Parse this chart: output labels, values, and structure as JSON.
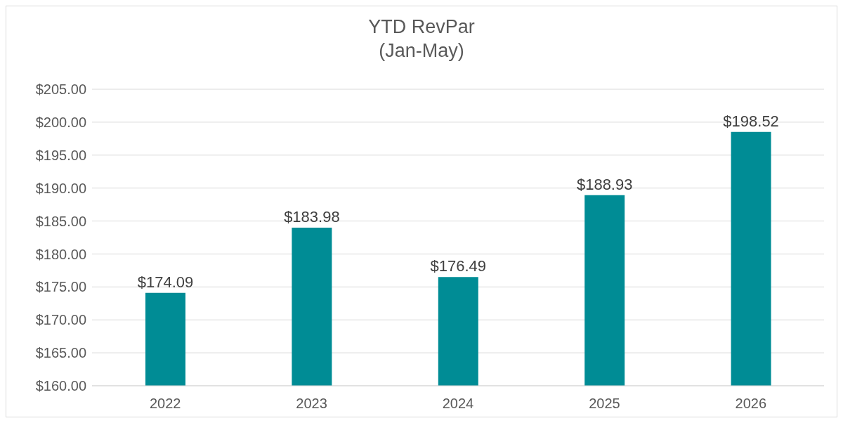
{
  "chart_data": {
    "type": "bar",
    "title": "YTD RevPar",
    "subtitle": "(Jan-May)",
    "categories": [
      "2022",
      "2023",
      "2024",
      "2025",
      "2026"
    ],
    "values": [
      174.09,
      183.98,
      176.49,
      188.93,
      198.52
    ],
    "value_labels": [
      "$174.09",
      "$183.98",
      "$176.49",
      "$188.93",
      "$198.52"
    ],
    "color": "#008c95",
    "ylim": [
      160,
      205
    ],
    "yticks": [
      {
        "value": 160,
        "label": "$160.00"
      },
      {
        "value": 165,
        "label": "$165.00"
      },
      {
        "value": 170,
        "label": "$170.00"
      },
      {
        "value": 175,
        "label": "$175.00"
      },
      {
        "value": 180,
        "label": "$180.00"
      },
      {
        "value": 185,
        "label": "$185.00"
      },
      {
        "value": 190,
        "label": "$190.00"
      },
      {
        "value": 195,
        "label": "$195.00"
      },
      {
        "value": 200,
        "label": "$200.00"
      },
      {
        "value": 205,
        "label": "$205.00"
      }
    ],
    "grid": "y"
  }
}
